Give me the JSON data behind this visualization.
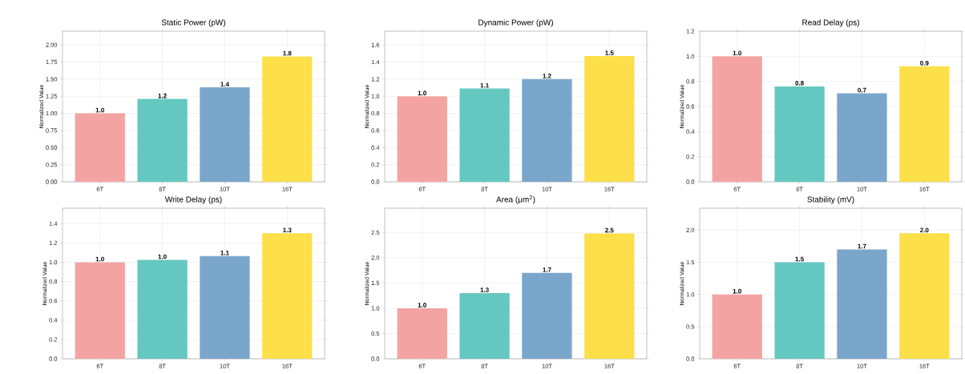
{
  "chart_data": [
    {
      "type": "bar",
      "title": "Static Power (pW)",
      "ylabel": "Normalized Value",
      "categories": [
        "6T",
        "8T",
        "10T",
        "16T"
      ],
      "values": [
        1.0,
        1.21,
        1.38,
        1.83
      ],
      "value_labels": [
        "1.0",
        "1.2",
        "1.4",
        "1.8"
      ],
      "colors": [
        "#f4a3a3",
        "#64c8c0",
        "#7ba6cb",
        "#fddf4a"
      ],
      "ylim": [
        0,
        2.2
      ],
      "yticks": [
        {
          "value": 0,
          "label": "0.00"
        },
        {
          "value": 0.25,
          "label": "0.25"
        },
        {
          "value": 0.5,
          "label": "0.50"
        },
        {
          "value": 0.75,
          "label": "0.75"
        },
        {
          "value": 1.0,
          "label": "1.00"
        },
        {
          "value": 1.25,
          "label": "1.25"
        },
        {
          "value": 1.5,
          "label": "1.50"
        },
        {
          "value": 1.75,
          "label": "1.75"
        },
        {
          "value": 2.0,
          "label": "2.00"
        }
      ],
      "grid": true
    },
    {
      "type": "bar",
      "title": "Dynamic Power (pW)",
      "ylabel": "Normalized Value",
      "categories": [
        "6T",
        "8T",
        "10T",
        "16T"
      ],
      "values": [
        1.0,
        1.09,
        1.2,
        1.47
      ],
      "value_labels": [
        "1.0",
        "1.1",
        "1.2",
        "1.5"
      ],
      "colors": [
        "#f4a3a3",
        "#64c8c0",
        "#7ba6cb",
        "#fddf4a"
      ],
      "ylim": [
        0,
        1.76
      ],
      "yticks": [
        {
          "value": 0,
          "label": "0.0"
        },
        {
          "value": 0.2,
          "label": "0.2"
        },
        {
          "value": 0.4,
          "label": "0.4"
        },
        {
          "value": 0.6,
          "label": "0.6"
        },
        {
          "value": 0.8,
          "label": "0.8"
        },
        {
          "value": 1.0,
          "label": "1.0"
        },
        {
          "value": 1.2,
          "label": "1.2"
        },
        {
          "value": 1.4,
          "label": "1.4"
        },
        {
          "value": 1.6,
          "label": "1.6"
        }
      ],
      "grid": true
    },
    {
      "type": "bar",
      "title": "Read Delay (ps)",
      "ylabel": "Normalized Value",
      "categories": [
        "6T",
        "8T",
        "10T",
        "16T"
      ],
      "values": [
        1.0,
        0.76,
        0.705,
        0.92
      ],
      "value_labels": [
        "1.0",
        "0.8",
        "0.7",
        "0.9"
      ],
      "colors": [
        "#f4a3a3",
        "#64c8c0",
        "#7ba6cb",
        "#fddf4a"
      ],
      "ylim": [
        0,
        1.2
      ],
      "yticks": [
        {
          "value": 0,
          "label": "0.0"
        },
        {
          "value": 0.2,
          "label": "0.2"
        },
        {
          "value": 0.4,
          "label": "0.4"
        },
        {
          "value": 0.6,
          "label": "0.6"
        },
        {
          "value": 0.8,
          "label": "0.8"
        },
        {
          "value": 1.0,
          "label": "1.0"
        },
        {
          "value": 1.2,
          "label": "1.2"
        }
      ],
      "grid": true
    },
    {
      "type": "bar",
      "title": "Write Delay (ps)",
      "ylabel": "Normalized Value",
      "categories": [
        "6T",
        "8T",
        "10T",
        "16T"
      ],
      "values": [
        1.0,
        1.025,
        1.065,
        1.3
      ],
      "value_labels": [
        "1.0",
        "1.0",
        "1.1",
        "1.3"
      ],
      "colors": [
        "#f4a3a3",
        "#64c8c0",
        "#7ba6cb",
        "#fddf4a"
      ],
      "ylim": [
        0,
        1.56
      ],
      "yticks": [
        {
          "value": 0,
          "label": "0.0"
        },
        {
          "value": 0.2,
          "label": "0.2"
        },
        {
          "value": 0.4,
          "label": "0.4"
        },
        {
          "value": 0.6,
          "label": "0.6"
        },
        {
          "value": 0.8,
          "label": "0.8"
        },
        {
          "value": 1.0,
          "label": "1.0"
        },
        {
          "value": 1.2,
          "label": "1.2"
        },
        {
          "value": 1.4,
          "label": "1.4"
        }
      ],
      "grid": true
    },
    {
      "type": "bar",
      "title": "Area (μm$^{2}$)",
      "ylabel": "Normalized Value",
      "categories": [
        "6T",
        "8T",
        "10T",
        "16T"
      ],
      "values": [
        1.0,
        1.3,
        1.7,
        2.48
      ],
      "value_labels": [
        "1.0",
        "1.3",
        "1.7",
        "2.5"
      ],
      "colors": [
        "#f4a3a3",
        "#64c8c0",
        "#7ba6cb",
        "#fddf4a"
      ],
      "ylim": [
        0,
        2.98
      ],
      "yticks": [
        {
          "value": 0,
          "label": "0.0"
        },
        {
          "value": 0.5,
          "label": "0.5"
        },
        {
          "value": 1.0,
          "label": "1.0"
        },
        {
          "value": 1.5,
          "label": "1.5"
        },
        {
          "value": 2.0,
          "label": "2.0"
        },
        {
          "value": 2.5,
          "label": "2.5"
        }
      ],
      "grid": true
    },
    {
      "type": "bar",
      "title": "Stability (mV)",
      "ylabel": "Normalized Value",
      "categories": [
        "6T",
        "8T",
        "10T",
        "16T"
      ],
      "values": [
        1.0,
        1.5,
        1.7,
        1.95
      ],
      "value_labels": [
        "1.0",
        "1.5",
        "1.7",
        "2.0"
      ],
      "colors": [
        "#f4a3a3",
        "#64c8c0",
        "#7ba6cb",
        "#fddf4a"
      ],
      "ylim": [
        0,
        2.34
      ],
      "yticks": [
        {
          "value": 0,
          "label": "0.0"
        },
        {
          "value": 0.5,
          "label": "0.5"
        },
        {
          "value": 1.0,
          "label": "1.0"
        },
        {
          "value": 1.5,
          "label": "1.5"
        },
        {
          "value": 2.0,
          "label": "2.0"
        }
      ],
      "grid": true
    }
  ]
}
